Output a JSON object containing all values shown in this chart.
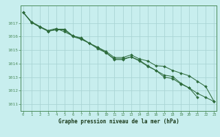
{
  "title": "Graphe pression niveau de la mer (hPa)",
  "background_color": "#c8eeee",
  "grid_color": "#aad4d4",
  "line_color": "#2d6b3c",
  "spine_color": "#4a8a5a",
  "xlim": [
    -0.3,
    23.3
  ],
  "ylim": [
    1010.5,
    1018.3
  ],
  "yticks": [
    1011,
    1012,
    1013,
    1014,
    1015,
    1016,
    1017
  ],
  "xticks": [
    0,
    1,
    2,
    3,
    4,
    5,
    6,
    7,
    8,
    9,
    10,
    11,
    12,
    13,
    14,
    15,
    16,
    17,
    18,
    19,
    20,
    21,
    22,
    23
  ],
  "series1_x": [
    0,
    1,
    2,
    3,
    4,
    5,
    6,
    7,
    8,
    9,
    10,
    11,
    12,
    13,
    14,
    15,
    16,
    17,
    18,
    19,
    20,
    21
  ],
  "series1_y": [
    1017.8,
    1017.1,
    1016.75,
    1016.4,
    1016.55,
    1016.55,
    1016.05,
    1015.85,
    1015.5,
    1015.1,
    1014.8,
    1014.35,
    1014.35,
    1014.5,
    1014.25,
    1013.85,
    1013.5,
    1013.15,
    1013.05,
    1012.55,
    1012.2,
    1011.5
  ],
  "series2_x": [
    0,
    1,
    2,
    3,
    4,
    5,
    6,
    7,
    8,
    9,
    10,
    11,
    12,
    13,
    14,
    15,
    16,
    17,
    18,
    19,
    20,
    21,
    22,
    23
  ],
  "series2_y": [
    1017.8,
    1017.05,
    1016.75,
    1016.45,
    1016.6,
    1016.35,
    1016.05,
    1015.9,
    1015.5,
    1015.2,
    1014.9,
    1014.45,
    1014.45,
    1014.65,
    1014.35,
    1014.2,
    1013.85,
    1013.8,
    1013.5,
    1013.3,
    1013.1,
    1012.7,
    1012.3,
    1011.2
  ],
  "series3_x": [
    0,
    1,
    2,
    3,
    4,
    5,
    6,
    7,
    8,
    9,
    10,
    11,
    12,
    13,
    14,
    15,
    16,
    17,
    18,
    19,
    20,
    21,
    22,
    23
  ],
  "series3_y": [
    1017.8,
    1017.05,
    1016.7,
    1016.4,
    1016.5,
    1016.5,
    1016.0,
    1015.8,
    1015.5,
    1015.2,
    1014.8,
    1014.3,
    1014.3,
    1014.5,
    1014.2,
    1013.8,
    1013.5,
    1013.0,
    1012.9,
    1012.5,
    1012.2,
    1011.8,
    1011.5,
    1011.2
  ]
}
